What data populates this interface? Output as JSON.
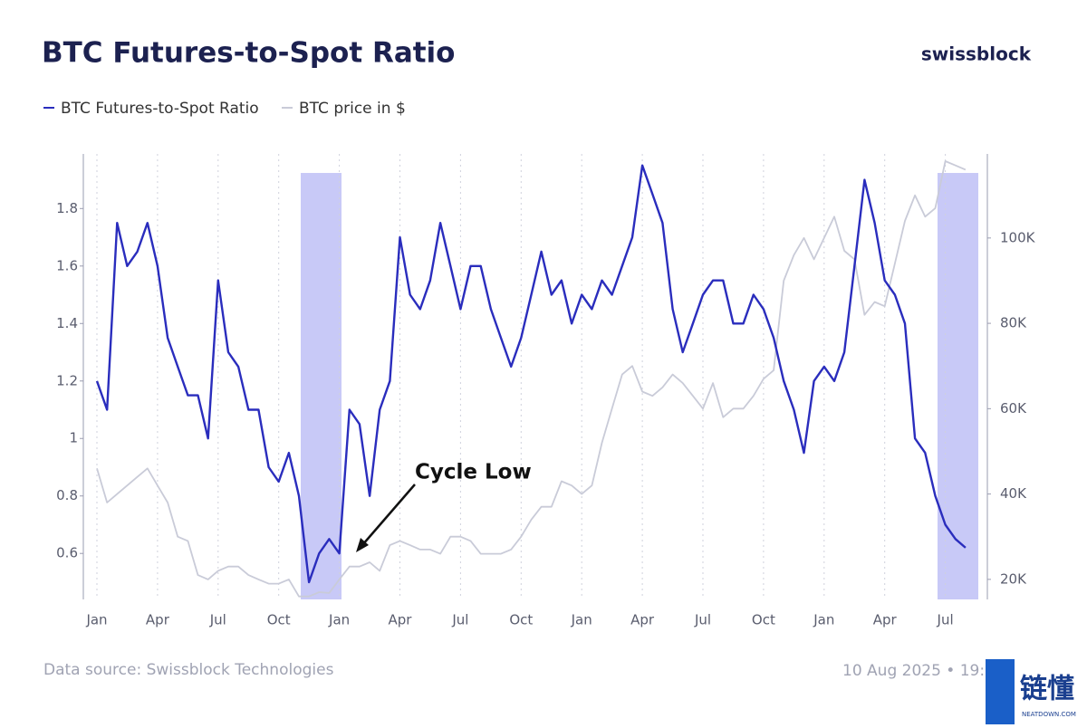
{
  "brand": "swissblock",
  "footer": {
    "source": "Data source: Swissblock Technologies",
    "timestamp": "10 Aug 2025 • 19:"
  },
  "watermark": {
    "text": "链懂",
    "site": "NEATDOWN.COM"
  },
  "chart_data": {
    "type": "line",
    "title": "BTC Futures-to-Spot Ratio",
    "annotation": "Cycle Low",
    "categories": [
      "Jan",
      null,
      null,
      null,
      null,
      null,
      "Apr",
      null,
      null,
      null,
      null,
      null,
      "Jul",
      null,
      null,
      null,
      null,
      null,
      "Oct",
      null,
      null,
      null,
      null,
      null,
      "Jan",
      null,
      null,
      null,
      null,
      null,
      "Apr",
      null,
      null,
      null,
      null,
      null,
      "Jul",
      null,
      null,
      null,
      null,
      null,
      "Oct",
      null,
      null,
      null,
      null,
      null,
      "Jan",
      null,
      null,
      null,
      null,
      null,
      "Apr",
      null,
      null,
      null,
      null,
      null,
      "Jul",
      null,
      null,
      null,
      null,
      null,
      "Oct",
      null,
      null,
      null,
      null,
      null,
      "Jan",
      null,
      null,
      null,
      null,
      null,
      "Apr",
      null,
      null,
      null,
      null,
      null,
      "Jul",
      null,
      null
    ],
    "series": [
      {
        "name": "BTC Futures-to-Spot Ratio",
        "color": "#2a2dbd",
        "axis": "y",
        "values": [
          1.2,
          1.1,
          1.75,
          1.6,
          1.65,
          1.75,
          1.6,
          1.35,
          1.25,
          1.15,
          1.15,
          1.0,
          1.55,
          1.3,
          1.25,
          1.1,
          1.1,
          0.9,
          0.85,
          0.95,
          0.8,
          0.5,
          0.6,
          0.65,
          0.6,
          1.1,
          1.05,
          0.8,
          1.1,
          1.2,
          1.7,
          1.5,
          1.45,
          1.55,
          1.75,
          1.6,
          1.45,
          1.6,
          1.6,
          1.45,
          1.35,
          1.25,
          1.35,
          1.5,
          1.65,
          1.5,
          1.55,
          1.4,
          1.5,
          1.45,
          1.55,
          1.5,
          1.6,
          1.7,
          1.95,
          1.85,
          1.75,
          1.45,
          1.3,
          1.4,
          1.5,
          1.55,
          1.55,
          1.4,
          1.4,
          1.5,
          1.45,
          1.35,
          1.2,
          1.1,
          0.95,
          1.2,
          1.25,
          1.2,
          1.3,
          1.6,
          1.9,
          1.75,
          1.55,
          1.5,
          1.4,
          1.0,
          0.95,
          0.8,
          0.7,
          0.65,
          0.62
        ]
      },
      {
        "name": "BTC price in $",
        "color": "#c9cbd8",
        "axis": "y2",
        "values": [
          46000,
          38000,
          40000,
          42000,
          44000,
          46000,
          42000,
          38000,
          30000,
          29000,
          21000,
          20000,
          22000,
          23000,
          23000,
          21000,
          20000,
          19000,
          19000,
          20000,
          16000,
          16000,
          17000,
          16800,
          20000,
          23000,
          23000,
          24000,
          22000,
          28000,
          29000,
          28000,
          27000,
          27000,
          26000,
          30000,
          30000,
          29000,
          26000,
          26000,
          26000,
          27000,
          30000,
          34000,
          37000,
          37000,
          43000,
          42000,
          40000,
          42000,
          52000,
          60000,
          68000,
          70000,
          64000,
          63000,
          65000,
          68000,
          66000,
          63000,
          60000,
          66000,
          58000,
          60000,
          60000,
          63000,
          67000,
          69000,
          90000,
          96000,
          100000,
          95000,
          100000,
          105000,
          97000,
          95000,
          82000,
          85000,
          84000,
          94000,
          104000,
          110000,
          105000,
          107000,
          118000,
          117000,
          116000
        ]
      }
    ],
    "ylim": [
      0.44,
      1.99
    ],
    "yticks": [
      0.6,
      0.8,
      1,
      1.2,
      1.4,
      1.6,
      1.8
    ],
    "y2lim": [
      15300,
      119700
    ],
    "y2ticks": [
      {
        "value": 20000,
        "label": "20K"
      },
      {
        "value": 40000,
        "label": "40K"
      },
      {
        "value": 60000,
        "label": "60K"
      },
      {
        "value": 80000,
        "label": "80K"
      },
      {
        "value": 100000,
        "label": "100K"
      }
    ],
    "xgrid": true
  }
}
